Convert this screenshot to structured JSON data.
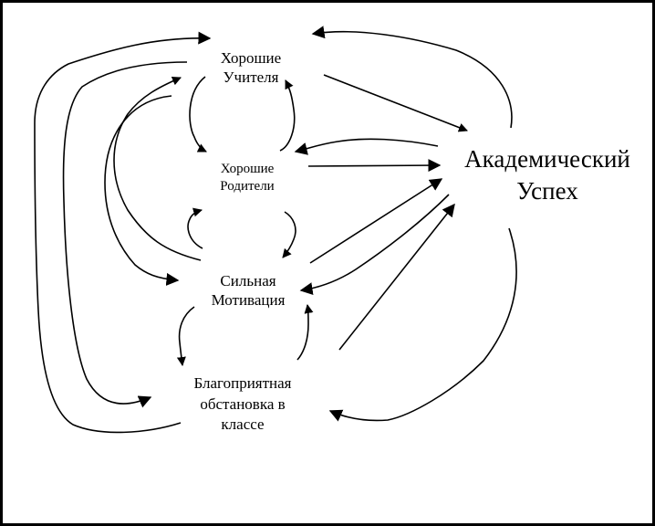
{
  "nodes": {
    "teachers": {
      "line1": "Хорошие",
      "line2": "Учителя"
    },
    "parents": {
      "line1": "Хорошие",
      "line2": "Родители"
    },
    "motivation": {
      "line1": "Сильная",
      "line2": "Мотивация"
    },
    "environment": {
      "line1": "Благоприятная",
      "line2": "обстановка в",
      "line3": "классе"
    },
    "success": {
      "line1": "Академический",
      "line2": "Успех"
    }
  }
}
